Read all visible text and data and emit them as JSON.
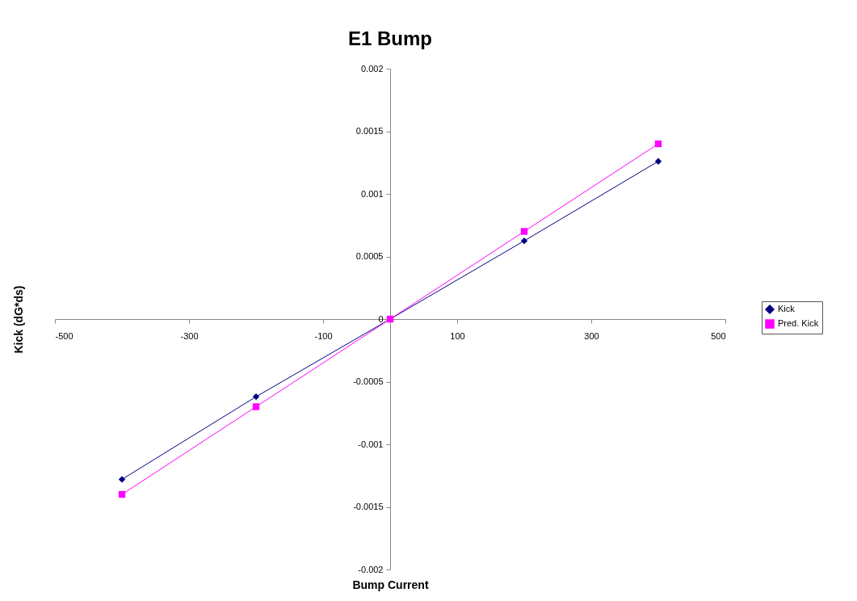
{
  "chart_data": {
    "type": "line",
    "title": "E1 Bump",
    "xlabel": "Bump Current",
    "ylabel": "Kick (dG*ds)",
    "x": [
      -400,
      -200,
      0,
      200,
      400
    ],
    "series": [
      {
        "name": "Kick",
        "color": "#000080",
        "marker": "diamond",
        "values": [
          -0.00128,
          -0.00062,
          0,
          0.000625,
          0.00126
        ]
      },
      {
        "name": "Pred. Kick",
        "color": "#ff00ff",
        "marker": "square",
        "values": [
          -0.0014,
          -0.0007,
          0,
          0.0007,
          0.0014
        ]
      }
    ],
    "xlim": [
      -500,
      500
    ],
    "xticks": [
      -500,
      -300,
      -100,
      100,
      300,
      500
    ],
    "ylim": [
      -0.002,
      0.002
    ],
    "yticks": [
      -0.002,
      -0.0015,
      -0.001,
      -0.0005,
      0,
      0.0005,
      0.001,
      0.0015,
      0.002
    ],
    "grid": false,
    "legend": "right"
  }
}
